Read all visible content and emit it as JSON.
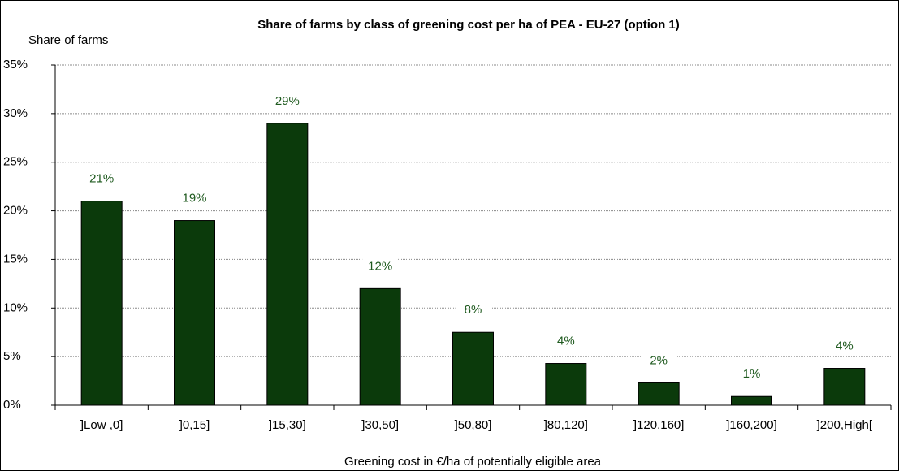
{
  "chart_data": {
    "type": "bar",
    "title": "Share of farms by class of greening cost per ha of PEA - EU-27 (option 1)",
    "y_label": "Share of farms",
    "x_label": "Greening cost in €/ha of potentially eligible area",
    "categories": [
      "]Low ,0]",
      "]0,15]",
      "]15,30]",
      "]30,50]",
      "]50,80]",
      "]80,120]",
      "]120,160]",
      "]160,200]",
      "]200,High["
    ],
    "values": [
      21,
      19,
      29,
      12,
      7.5,
      4.3,
      2.3,
      0.9,
      3.8
    ],
    "value_labels": [
      "21%",
      "19%",
      "29%",
      "12%",
      "8%",
      "4%",
      "2%",
      "1%",
      "4%"
    ],
    "color": "#0b3a0b",
    "ylim": [
      0,
      35
    ],
    "yticks": [
      {
        "value": 0,
        "label": "0%"
      },
      {
        "value": 5,
        "label": "5%"
      },
      {
        "value": 10,
        "label": "10%"
      },
      {
        "value": 15,
        "label": "15%"
      },
      {
        "value": 20,
        "label": "20%"
      },
      {
        "value": 25,
        "label": "25%"
      },
      {
        "value": 30,
        "label": "30%"
      },
      {
        "value": 35,
        "label": "35%"
      }
    ],
    "grid": true
  }
}
